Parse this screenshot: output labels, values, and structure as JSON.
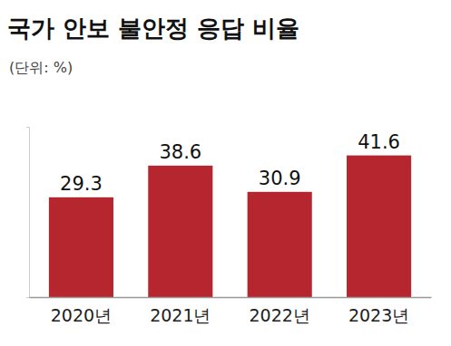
{
  "chart_data": {
    "type": "bar",
    "title": "국가 안보 불안정 응답 비율",
    "subtitle": "(단위: %)",
    "categories": [
      "2020년",
      "2021년",
      "2022년",
      "2023년"
    ],
    "values": [
      29.3,
      38.6,
      30.9,
      41.6
    ],
    "color": "#b5262e",
    "ylim": [
      0,
      50
    ],
    "yticks": [
      0,
      50
    ],
    "grid": false,
    "data_labels": true,
    "tick_labels": "x"
  }
}
